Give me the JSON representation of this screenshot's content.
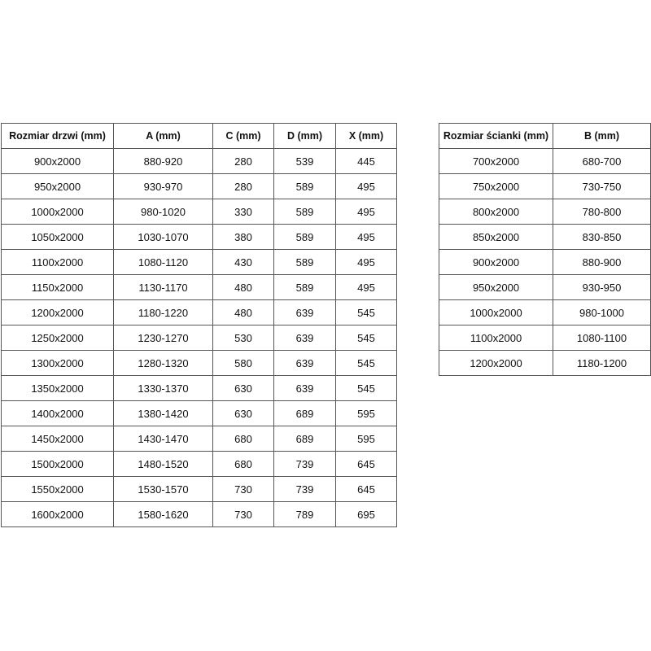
{
  "door_table": {
    "header": [
      "Rozmiar drzwi (mm)",
      "A (mm)",
      "C (mm)",
      "D (mm)",
      "X (mm)"
    ],
    "rows": [
      [
        "900x2000",
        "880-920",
        "280",
        "539",
        "445"
      ],
      [
        "950x2000",
        "930-970",
        "280",
        "589",
        "495"
      ],
      [
        "1000x2000",
        "980-1020",
        "330",
        "589",
        "495"
      ],
      [
        "1050x2000",
        "1030-1070",
        "380",
        "589",
        "495"
      ],
      [
        "1100x2000",
        "1080-1120",
        "430",
        "589",
        "495"
      ],
      [
        "1150x2000",
        "1130-1170",
        "480",
        "589",
        "495"
      ],
      [
        "1200x2000",
        "1180-1220",
        "480",
        "639",
        "545"
      ],
      [
        "1250x2000",
        "1230-1270",
        "530",
        "639",
        "545"
      ],
      [
        "1300x2000",
        "1280-1320",
        "580",
        "639",
        "545"
      ],
      [
        "1350x2000",
        "1330-1370",
        "630",
        "639",
        "545"
      ],
      [
        "1400x2000",
        "1380-1420",
        "630",
        "689",
        "595"
      ],
      [
        "1450x2000",
        "1430-1470",
        "680",
        "689",
        "595"
      ],
      [
        "1500x2000",
        "1480-1520",
        "680",
        "739",
        "645"
      ],
      [
        "1550x2000",
        "1530-1570",
        "730",
        "739",
        "645"
      ],
      [
        "1600x2000",
        "1580-1620",
        "730",
        "789",
        "695"
      ]
    ]
  },
  "wall_table": {
    "header": [
      "Rozmiar ścianki (mm)",
      "B (mm)"
    ],
    "rows": [
      [
        "700x2000",
        "680-700"
      ],
      [
        "750x2000",
        "730-750"
      ],
      [
        "800x2000",
        "780-800"
      ],
      [
        "850x2000",
        "830-850"
      ],
      [
        "900x2000",
        "880-900"
      ],
      [
        "950x2000",
        "930-950"
      ],
      [
        "1000x2000",
        "980-1000"
      ],
      [
        "1100x2000",
        "1080-1100"
      ],
      [
        "1200x2000",
        "1180-1200"
      ]
    ]
  }
}
